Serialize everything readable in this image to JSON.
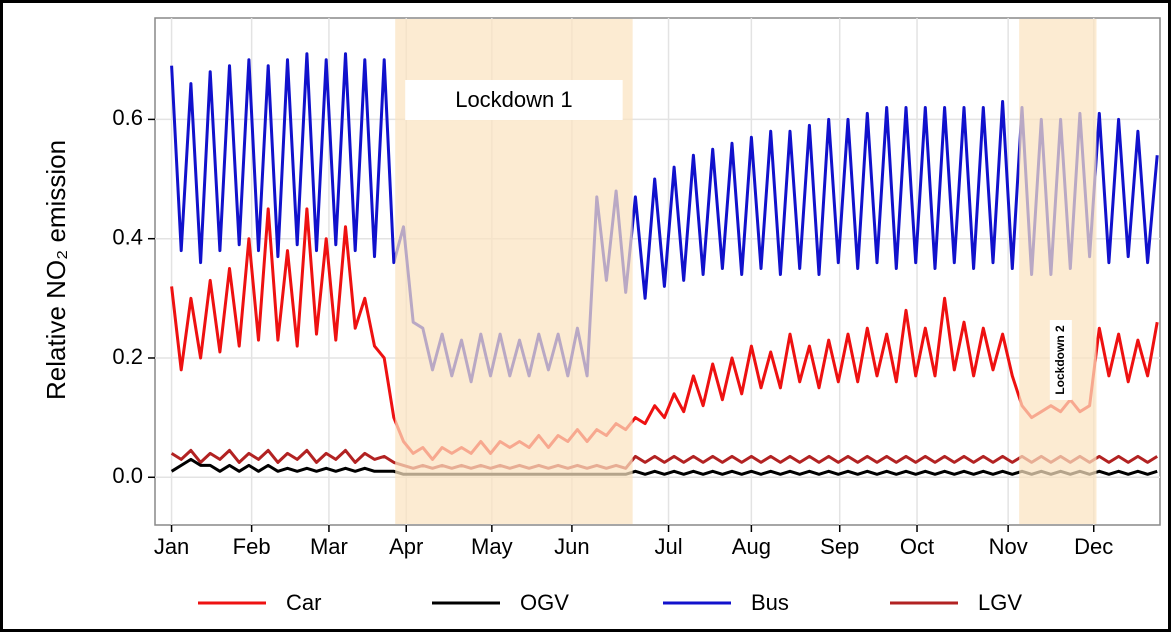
{
  "chart_data": {
    "type": "line",
    "y_label": "Relative NO₂ emission",
    "x": [
      1,
      4.5,
      8,
      11.5,
      15,
      18.5,
      22,
      25.5,
      29,
      32.5,
      36,
      39.5,
      43,
      46.5,
      50,
      53.5,
      57,
      60.5,
      64,
      67.5,
      71,
      74.5,
      78,
      81.5,
      85,
      88.5,
      92,
      95.5,
      99,
      102.5,
      106,
      109.5,
      113,
      116.5,
      120,
      123.5,
      127,
      130.5,
      134,
      137.5,
      141,
      144.5,
      148,
      151.5,
      155,
      158.5,
      162,
      165.5,
      169,
      172.5,
      176,
      179.5,
      183,
      186.5,
      190,
      193.5,
      197,
      200.5,
      204,
      207.5,
      211,
      214.5,
      218,
      221.5,
      225,
      228.5,
      232,
      235.5,
      239,
      242.5,
      246,
      249.5,
      253,
      256.5,
      260,
      263.5,
      267,
      270.5,
      274,
      277.5,
      281,
      284.5,
      288,
      291.5,
      295,
      298.5,
      302,
      305.5,
      309,
      312.5,
      316,
      319.5,
      323,
      326.5,
      330,
      333.5,
      337,
      340.5,
      344,
      347.5,
      351,
      354.5,
      358
    ],
    "series": [
      {
        "name": "Car",
        "color": "#ee1111",
        "values": [
          0.32,
          0.18,
          0.3,
          0.2,
          0.33,
          0.21,
          0.35,
          0.22,
          0.4,
          0.23,
          0.45,
          0.23,
          0.38,
          0.22,
          0.45,
          0.24,
          0.4,
          0.23,
          0.42,
          0.25,
          0.3,
          0.22,
          0.2,
          0.1,
          0.06,
          0.04,
          0.05,
          0.03,
          0.05,
          0.04,
          0.05,
          0.04,
          0.06,
          0.04,
          0.06,
          0.05,
          0.06,
          0.05,
          0.07,
          0.05,
          0.07,
          0.06,
          0.08,
          0.06,
          0.08,
          0.07,
          0.09,
          0.08,
          0.1,
          0.09,
          0.12,
          0.1,
          0.14,
          0.11,
          0.17,
          0.12,
          0.19,
          0.13,
          0.2,
          0.14,
          0.22,
          0.15,
          0.21,
          0.15,
          0.24,
          0.16,
          0.22,
          0.15,
          0.23,
          0.16,
          0.24,
          0.16,
          0.25,
          0.17,
          0.24,
          0.16,
          0.28,
          0.17,
          0.25,
          0.17,
          0.3,
          0.18,
          0.26,
          0.17,
          0.25,
          0.18,
          0.24,
          0.17,
          0.12,
          0.1,
          0.11,
          0.12,
          0.11,
          0.13,
          0.11,
          0.12,
          0.25,
          0.17,
          0.24,
          0.16,
          0.23,
          0.17,
          0.26
        ]
      },
      {
        "name": "OGV",
        "color": "#000000",
        "values": [
          0.01,
          0.02,
          0.03,
          0.02,
          0.02,
          0.01,
          0.02,
          0.01,
          0.02,
          0.01,
          0.02,
          0.01,
          0.015,
          0.01,
          0.015,
          0.01,
          0.015,
          0.01,
          0.015,
          0.01,
          0.015,
          0.01,
          0.01,
          0.01,
          0.005,
          0.005,
          0.005,
          0.005,
          0.005,
          0.005,
          0.005,
          0.005,
          0.005,
          0.005,
          0.005,
          0.005,
          0.005,
          0.005,
          0.005,
          0.005,
          0.005,
          0.005,
          0.005,
          0.005,
          0.005,
          0.005,
          0.005,
          0.005,
          0.01,
          0.005,
          0.01,
          0.005,
          0.01,
          0.005,
          0.01,
          0.005,
          0.01,
          0.005,
          0.01,
          0.005,
          0.01,
          0.005,
          0.01,
          0.005,
          0.01,
          0.005,
          0.01,
          0.005,
          0.01,
          0.005,
          0.01,
          0.005,
          0.01,
          0.005,
          0.01,
          0.005,
          0.01,
          0.005,
          0.01,
          0.005,
          0.01,
          0.005,
          0.01,
          0.005,
          0.01,
          0.005,
          0.01,
          0.005,
          0.01,
          0.005,
          0.01,
          0.005,
          0.01,
          0.005,
          0.01,
          0.005,
          0.01,
          0.005,
          0.01,
          0.005,
          0.01,
          0.005,
          0.01
        ]
      },
      {
        "name": "Bus",
        "color": "#1111cc",
        "values": [
          0.69,
          0.38,
          0.66,
          0.36,
          0.68,
          0.38,
          0.69,
          0.39,
          0.7,
          0.38,
          0.69,
          0.37,
          0.7,
          0.39,
          0.71,
          0.38,
          0.7,
          0.39,
          0.71,
          0.38,
          0.7,
          0.37,
          0.7,
          0.36,
          0.42,
          0.26,
          0.25,
          0.18,
          0.24,
          0.17,
          0.23,
          0.16,
          0.24,
          0.17,
          0.24,
          0.17,
          0.23,
          0.17,
          0.24,
          0.18,
          0.24,
          0.17,
          0.25,
          0.17,
          0.47,
          0.33,
          0.48,
          0.31,
          0.47,
          0.3,
          0.5,
          0.32,
          0.52,
          0.33,
          0.54,
          0.34,
          0.55,
          0.35,
          0.56,
          0.34,
          0.57,
          0.35,
          0.58,
          0.34,
          0.58,
          0.35,
          0.59,
          0.34,
          0.6,
          0.36,
          0.6,
          0.35,
          0.61,
          0.36,
          0.62,
          0.35,
          0.62,
          0.36,
          0.62,
          0.35,
          0.62,
          0.36,
          0.62,
          0.35,
          0.62,
          0.36,
          0.63,
          0.35,
          0.62,
          0.34,
          0.6,
          0.34,
          0.6,
          0.35,
          0.61,
          0.37,
          0.61,
          0.36,
          0.6,
          0.37,
          0.58,
          0.36,
          0.54
        ]
      },
      {
        "name": "LGV",
        "color": "#b22222",
        "values": [
          0.04,
          0.03,
          0.045,
          0.025,
          0.04,
          0.03,
          0.045,
          0.025,
          0.04,
          0.03,
          0.045,
          0.025,
          0.04,
          0.03,
          0.045,
          0.025,
          0.04,
          0.03,
          0.045,
          0.025,
          0.04,
          0.03,
          0.035,
          0.025,
          0.02,
          0.015,
          0.02,
          0.015,
          0.02,
          0.015,
          0.02,
          0.015,
          0.02,
          0.015,
          0.02,
          0.015,
          0.02,
          0.015,
          0.02,
          0.015,
          0.02,
          0.015,
          0.02,
          0.015,
          0.02,
          0.015,
          0.02,
          0.015,
          0.035,
          0.025,
          0.035,
          0.025,
          0.035,
          0.025,
          0.035,
          0.025,
          0.035,
          0.025,
          0.035,
          0.025,
          0.035,
          0.025,
          0.035,
          0.025,
          0.035,
          0.025,
          0.035,
          0.025,
          0.035,
          0.025,
          0.035,
          0.025,
          0.035,
          0.025,
          0.035,
          0.025,
          0.035,
          0.025,
          0.035,
          0.025,
          0.035,
          0.025,
          0.035,
          0.025,
          0.035,
          0.025,
          0.035,
          0.025,
          0.035,
          0.025,
          0.035,
          0.025,
          0.035,
          0.025,
          0.035,
          0.025,
          0.035,
          0.025,
          0.035,
          0.025,
          0.035,
          0.025,
          0.035
        ]
      }
    ],
    "spans": [
      {
        "label": "Lockdown 1",
        "x": [
          82,
          168
        ]
      },
      {
        "label": "Lockdown 2",
        "x": [
          308,
          336
        ]
      }
    ],
    "span_color": "#fbe3c0",
    "xlim": [
      -5,
      359
    ],
    "xticks": [
      {
        "value": 1,
        "label": "Jan"
      },
      {
        "value": 30,
        "label": "Feb"
      },
      {
        "value": 58,
        "label": "Mar"
      },
      {
        "value": 86,
        "label": "Apr"
      },
      {
        "value": 117,
        "label": "May"
      },
      {
        "value": 146,
        "label": "Jun"
      },
      {
        "value": 181,
        "label": "Jul"
      },
      {
        "value": 211,
        "label": "Aug"
      },
      {
        "value": 243,
        "label": "Sep"
      },
      {
        "value": 271,
        "label": "Oct"
      },
      {
        "value": 304,
        "label": "Nov"
      },
      {
        "value": 335,
        "label": "Dec"
      }
    ],
    "ylim": [
      -0.08,
      0.77
    ],
    "yticks": [
      {
        "value": 0,
        "label": "0.0"
      },
      0.2,
      0.4,
      0.6
    ],
    "grid": true
  }
}
